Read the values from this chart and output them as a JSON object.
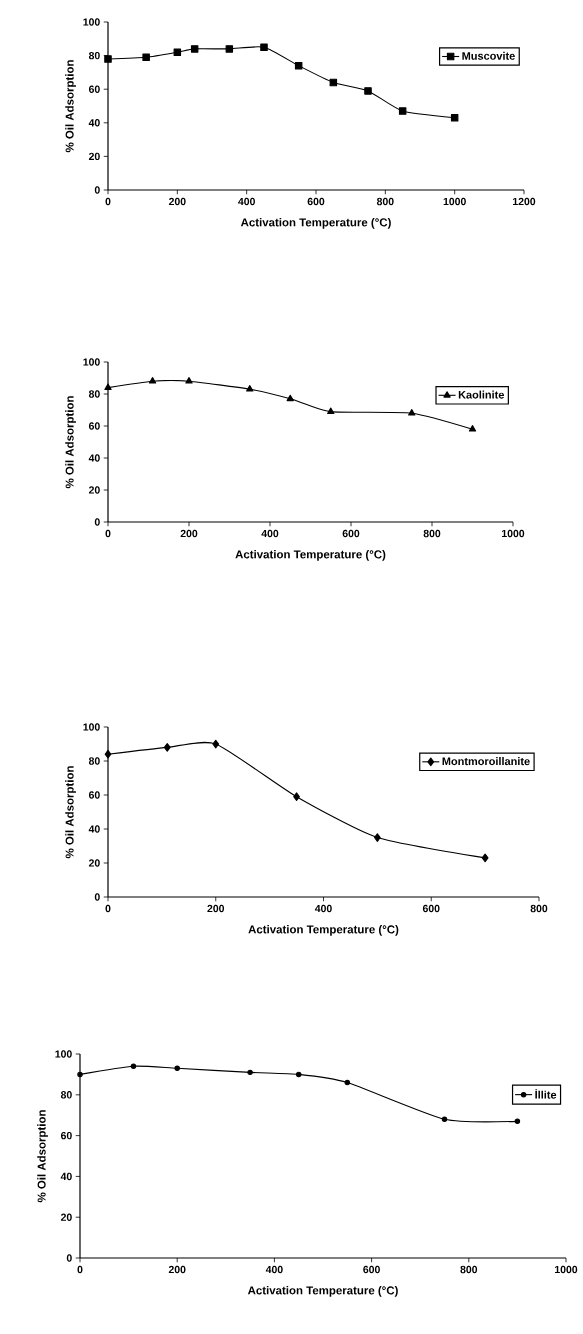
{
  "chart_data": [
    {
      "type": "line",
      "xlabel": "Activation Temperature (°C)",
      "ylabel": "% Oil Adsorption",
      "x": [
        0,
        110,
        200,
        250,
        350,
        450,
        550,
        650,
        750,
        850,
        1000
      ],
      "series": [
        {
          "name": "Muscovite",
          "color": "#000000",
          "values": [
            78,
            79,
            82,
            84,
            84,
            85,
            74,
            64,
            59,
            47,
            43
          ]
        }
      ],
      "xlim": [
        0,
        1200
      ],
      "ylim": [
        0,
        100
      ],
      "xticks": [
        0,
        200,
        400,
        600,
        800,
        1000,
        1200
      ],
      "yticks": [
        0,
        20,
        40,
        60,
        80,
        100
      ],
      "marker": "square",
      "legend": "top right"
    },
    {
      "type": "line",
      "xlabel": "Activation Temperature (°C)",
      "ylabel": "% Oil Adsorption",
      "x": [
        0,
        110,
        200,
        350,
        450,
        550,
        750,
        900
      ],
      "series": [
        {
          "name": "Kaolinite",
          "color": "#000000",
          "values": [
            84,
            88,
            88,
            83,
            77,
            69,
            68,
            58
          ]
        }
      ],
      "xlim": [
        0,
        1000
      ],
      "ylim": [
        0,
        100
      ],
      "xticks": [
        0,
        200,
        400,
        600,
        800,
        1000
      ],
      "yticks": [
        0,
        20,
        40,
        60,
        80,
        100
      ],
      "marker": "triangle",
      "legend": "top right"
    },
    {
      "type": "line",
      "xlabel": "Activation Temperature (°C)",
      "ylabel": "% Oil Adsorption",
      "x": [
        0,
        110,
        200,
        350,
        500,
        700
      ],
      "series": [
        {
          "name": "Montmoroillanite",
          "color": "#000000",
          "values": [
            84,
            88,
            90,
            59,
            35,
            23
          ]
        }
      ],
      "xlim": [
        0,
        800
      ],
      "ylim": [
        0,
        100
      ],
      "xticks": [
        0,
        200,
        400,
        600,
        800
      ],
      "yticks": [
        0,
        20,
        40,
        60,
        80,
        100
      ],
      "marker": "diamond",
      "legend": "top right"
    },
    {
      "type": "line",
      "xlabel": "Activation Temperature (°C)",
      "ylabel": "% Oil Adsorption",
      "x": [
        0,
        110,
        200,
        350,
        450,
        550,
        750,
        900
      ],
      "series": [
        {
          "name": "İllite",
          "color": "#000000",
          "values": [
            90,
            94,
            93,
            91,
            90,
            86,
            68,
            67
          ]
        }
      ],
      "xlim": [
        0,
        1000
      ],
      "ylim": [
        0,
        100
      ],
      "xticks": [
        0,
        200,
        400,
        600,
        800,
        1000
      ],
      "yticks": [
        0,
        20,
        40,
        60,
        80,
        100
      ],
      "marker": "circle",
      "legend": "top right"
    }
  ]
}
